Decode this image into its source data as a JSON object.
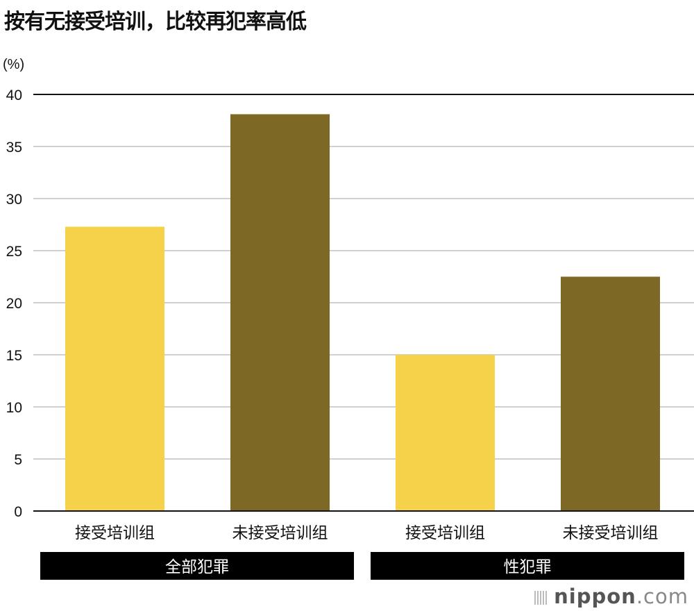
{
  "chart_data": {
    "type": "bar",
    "title": "按有无接受培训，比较再犯率高低",
    "ylabel": "(%)",
    "xlabel": "",
    "ylim": [
      0,
      40
    ],
    "yticks": [
      0,
      5,
      10,
      15,
      20,
      25,
      30,
      35,
      40
    ],
    "grid": true,
    "categories": [
      "接受培训组",
      "未接受培训组",
      "接受培训组",
      "未接受培训组"
    ],
    "groups": [
      {
        "label": "全部犯罪",
        "categories": [
          0,
          1
        ]
      },
      {
        "label": "性犯罪",
        "categories": [
          2,
          3
        ]
      }
    ],
    "values": [
      27.3,
      38.1,
      15.0,
      22.5
    ],
    "bar_colors": [
      "#f6d14a",
      "#7d6826",
      "#f6d14a",
      "#7d6826"
    ]
  },
  "branding": {
    "name": "nippon",
    "suffix": ".com"
  }
}
